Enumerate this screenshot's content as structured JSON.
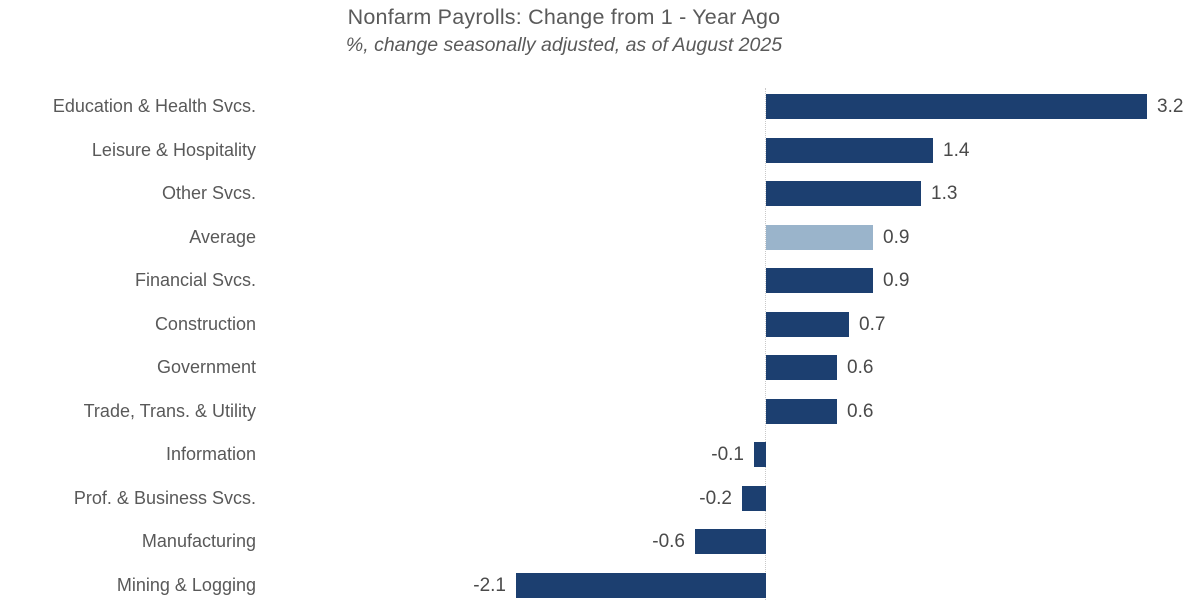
{
  "header": {
    "title": "Nonfarm Payrolls: Change from 1 - Year Ago",
    "subtitle": "%, change seasonally adjusted, as of August 2025"
  },
  "chart_data": {
    "type": "bar",
    "orientation": "horizontal",
    "title": "Nonfarm Payrolls: Change from 1 - Year Ago",
    "subtitle": "%, change seasonally adjusted, as of August 2025",
    "categories": [
      "Education & Health Svcs.",
      "Leisure & Hospitality",
      "Other Svcs.",
      "Average",
      "Financial Svcs.",
      "Construction",
      "Government",
      "Trade, Trans. & Utility",
      "Information",
      "Prof. & Business Svcs.",
      "Manufacturing",
      "Mining & Logging"
    ],
    "values": [
      3.2,
      1.4,
      1.3,
      0.9,
      0.9,
      0.7,
      0.6,
      0.6,
      -0.1,
      -0.2,
      -0.6,
      -2.1
    ],
    "value_labels": [
      "3.2",
      "1.4",
      "1.3",
      "0.9",
      "0.9",
      "0.7",
      "0.6",
      "0.6",
      "-0.1",
      "-0.2",
      "-0.6",
      "-2.1"
    ],
    "highlight_category": "Average",
    "xlim": [
      -2.6,
      3.7
    ],
    "zero_line": true,
    "grid": false,
    "legend": false,
    "units": "%",
    "colors": {
      "bar": "#1c3f70",
      "highlight_bar": "#9ab4cb",
      "category_label": "#595959",
      "value_label": "#4a4a4a",
      "title_text": "#5a5a5a",
      "zero_line": "#c9c9c9",
      "background": "#ffffff"
    }
  }
}
